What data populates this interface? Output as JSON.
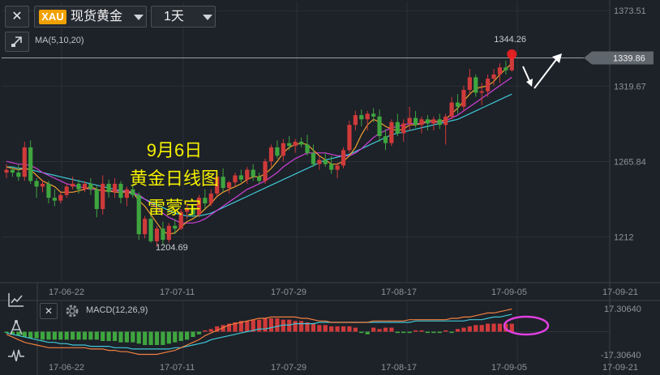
{
  "toolbar": {
    "close_glyph": "✕",
    "symbol_badge": "XAU",
    "symbol_name": "现货黄金",
    "period": "1天",
    "indicator_label": "MA(5,10,20)"
  },
  "sidebar": {
    "icons": [
      "line-chart-icon",
      "drawing-tool-icon",
      "indicator-wave-icon"
    ]
  },
  "macd_panel": {
    "close_glyph": "✕",
    "label": "MACD(12,26,9)",
    "ytick_top": "17.30640",
    "ytick_bottom": "-17.30640"
  },
  "annotation": {
    "line1": "9月6日",
    "line2": "黄金日线图",
    "line3": "雷蒙宇"
  },
  "colors": {
    "up": "#d03a3a",
    "down": "#3fa53f",
    "ma5": "#f0a030",
    "ma10": "#d040d8",
    "ma20": "#40c8d8",
    "macd_dif": "#f08040",
    "macd_dea": "#40c8d8",
    "highlight_circle": "#e040e0",
    "background": "#1d2128",
    "grid": "#2b3038"
  },
  "chart_data": {
    "type": "candlestick",
    "price_axis": {
      "ticks": [
        "1373.51",
        "1319.67",
        "1265.84",
        "1212"
      ],
      "ylim": [
        1180,
        1380
      ],
      "current_price_label": "1339.86",
      "current_price": 1339.86
    },
    "x_ticks": [
      "17-06-22",
      "17-07-11",
      "17-07-29",
      "17-08-17",
      "17-09-05",
      "17-09-21"
    ],
    "annotations": {
      "high_label": "1344.26",
      "high_value": 1344.26,
      "low_label": "1204.69",
      "low_value": 1204.69
    },
    "candles_ohlc": [
      [
        1258,
        1264,
        1254,
        1260
      ],
      [
        1260,
        1262,
        1255,
        1258
      ],
      [
        1258,
        1264,
        1252,
        1255
      ],
      [
        1255,
        1280,
        1252,
        1276
      ],
      [
        1276,
        1281,
        1250,
        1252
      ],
      [
        1252,
        1254,
        1240,
        1248
      ],
      [
        1248,
        1253,
        1244,
        1250
      ],
      [
        1250,
        1252,
        1236,
        1240
      ],
      [
        1240,
        1246,
        1234,
        1238
      ],
      [
        1238,
        1244,
        1236,
        1242
      ],
      [
        1242,
        1250,
        1240,
        1248
      ],
      [
        1248,
        1255,
        1246,
        1250
      ],
      [
        1250,
        1253,
        1243,
        1246
      ],
      [
        1246,
        1252,
        1244,
        1250
      ],
      [
        1250,
        1254,
        1242,
        1246
      ],
      [
        1246,
        1249,
        1226,
        1232
      ],
      [
        1232,
        1256,
        1228,
        1250
      ],
      [
        1250,
        1253,
        1240,
        1244
      ],
      [
        1244,
        1254,
        1240,
        1250
      ],
      [
        1250,
        1252,
        1236,
        1240
      ],
      [
        1240,
        1248,
        1234,
        1246
      ],
      [
        1246,
        1250,
        1240,
        1242
      ],
      [
        1242,
        1244,
        1210,
        1214
      ],
      [
        1214,
        1227,
        1211,
        1225
      ],
      [
        1225,
        1228,
        1208,
        1209
      ],
      [
        1209,
        1220,
        1205,
        1218
      ],
      [
        1218,
        1223,
        1206,
        1210
      ],
      [
        1210,
        1222,
        1208,
        1220
      ],
      [
        1220,
        1225,
        1214,
        1218
      ],
      [
        1218,
        1232,
        1217,
        1230
      ],
      [
        1230,
        1236,
        1225,
        1232
      ],
      [
        1232,
        1235,
        1226,
        1228
      ],
      [
        1228,
        1242,
        1226,
        1240
      ],
      [
        1240,
        1246,
        1232,
        1236
      ],
      [
        1236,
        1246,
        1234,
        1243
      ],
      [
        1243,
        1258,
        1241,
        1255
      ],
      [
        1255,
        1261,
        1244,
        1247
      ],
      [
        1247,
        1252,
        1243,
        1251
      ],
      [
        1251,
        1258,
        1248,
        1256
      ],
      [
        1256,
        1260,
        1251,
        1253
      ],
      [
        1253,
        1262,
        1250,
        1260
      ],
      [
        1260,
        1264,
        1252,
        1255
      ],
      [
        1255,
        1258,
        1250,
        1252
      ],
      [
        1252,
        1268,
        1250,
        1266
      ],
      [
        1266,
        1278,
        1262,
        1276
      ],
      [
        1276,
        1281,
        1268,
        1270
      ],
      [
        1270,
        1282,
        1266,
        1279
      ],
      [
        1279,
        1284,
        1274,
        1277
      ],
      [
        1277,
        1282,
        1272,
        1280
      ],
      [
        1280,
        1283,
        1276,
        1278
      ],
      [
        1278,
        1285,
        1270,
        1272
      ],
      [
        1272,
        1278,
        1262,
        1264
      ],
      [
        1264,
        1270,
        1260,
        1267
      ],
      [
        1267,
        1272,
        1262,
        1264
      ],
      [
        1264,
        1270,
        1257,
        1260
      ],
      [
        1260,
        1265,
        1254,
        1263
      ],
      [
        1263,
        1276,
        1261,
        1274
      ],
      [
        1274,
        1295,
        1272,
        1292
      ],
      [
        1292,
        1302,
        1288,
        1299
      ],
      [
        1299,
        1303,
        1291,
        1296
      ],
      [
        1296,
        1302,
        1288,
        1300
      ],
      [
        1300,
        1304,
        1294,
        1298
      ],
      [
        1298,
        1303,
        1280,
        1284
      ],
      [
        1284,
        1289,
        1274,
        1279
      ],
      [
        1279,
        1296,
        1277,
        1294
      ],
      [
        1294,
        1300,
        1284,
        1286
      ],
      [
        1286,
        1296,
        1280,
        1293
      ],
      [
        1293,
        1305,
        1288,
        1297
      ],
      [
        1297,
        1302,
        1290,
        1292
      ],
      [
        1292,
        1298,
        1286,
        1296
      ],
      [
        1296,
        1299,
        1288,
        1293
      ],
      [
        1293,
        1298,
        1288,
        1296
      ],
      [
        1296,
        1300,
        1289,
        1292
      ],
      [
        1292,
        1300,
        1278,
        1298
      ],
      [
        1298,
        1312,
        1296,
        1308
      ],
      [
        1308,
        1314,
        1300,
        1305
      ],
      [
        1305,
        1320,
        1302,
        1317
      ],
      [
        1317,
        1332,
        1314,
        1326
      ],
      [
        1326,
        1328,
        1312,
        1315
      ],
      [
        1315,
        1322,
        1306,
        1316
      ],
      [
        1316,
        1328,
        1312,
        1325
      ],
      [
        1325,
        1332,
        1320,
        1328
      ],
      [
        1328,
        1336,
        1322,
        1333
      ],
      [
        1333,
        1338,
        1328,
        1331
      ],
      [
        1331,
        1344,
        1330,
        1340
      ]
    ],
    "ma": {
      "ma5": [
        1262,
        1261,
        1260,
        1261,
        1260,
        1256,
        1252,
        1250,
        1248,
        1244,
        1244,
        1244,
        1245,
        1246,
        1248,
        1246,
        1245,
        1245,
        1244,
        1244,
        1244,
        1244,
        1238,
        1234,
        1228,
        1222,
        1216,
        1214,
        1215,
        1219,
        1223,
        1225,
        1228,
        1232,
        1236,
        1241,
        1244,
        1246,
        1248,
        1250,
        1253,
        1255,
        1255,
        1257,
        1261,
        1266,
        1272,
        1276,
        1278,
        1279,
        1278,
        1274,
        1270,
        1267,
        1264,
        1264,
        1266,
        1270,
        1276,
        1285,
        1292,
        1296,
        1294,
        1291,
        1289,
        1288,
        1289,
        1292,
        1292,
        1293,
        1295,
        1295,
        1294,
        1296,
        1300,
        1304,
        1309,
        1314,
        1318,
        1319,
        1320,
        1323,
        1328,
        1332,
        1336
      ],
      "ma10": [
        1266,
        1265,
        1264,
        1264,
        1263,
        1261,
        1258,
        1256,
        1254,
        1252,
        1250,
        1249,
        1248,
        1247,
        1246,
        1246,
        1245,
        1245,
        1245,
        1245,
        1245,
        1244,
        1242,
        1239,
        1236,
        1233,
        1229,
        1226,
        1224,
        1222,
        1222,
        1222,
        1223,
        1225,
        1228,
        1231,
        1234,
        1237,
        1240,
        1243,
        1246,
        1248,
        1250,
        1252,
        1255,
        1258,
        1262,
        1265,
        1268,
        1270,
        1272,
        1272,
        1272,
        1272,
        1271,
        1270,
        1270,
        1270,
        1272,
        1275,
        1279,
        1283,
        1286,
        1288,
        1290,
        1291,
        1292,
        1293,
        1293,
        1293,
        1294,
        1294,
        1294,
        1295,
        1297,
        1299,
        1302,
        1305,
        1308,
        1311,
        1314,
        1317,
        1320,
        1323,
        1326
      ],
      "ma20": [
        1262,
        1262,
        1261,
        1261,
        1260,
        1259,
        1258,
        1257,
        1256,
        1255,
        1254,
        1253,
        1252,
        1251,
        1250,
        1249,
        1248,
        1247,
        1246,
        1245,
        1244,
        1243,
        1241,
        1239,
        1237,
        1235,
        1233,
        1231,
        1229,
        1228,
        1227,
        1227,
        1227,
        1228,
        1229,
        1231,
        1233,
        1235,
        1237,
        1239,
        1241,
        1243,
        1245,
        1247,
        1249,
        1251,
        1253,
        1255,
        1257,
        1259,
        1261,
        1263,
        1265,
        1267,
        1268,
        1269,
        1270,
        1271,
        1273,
        1275,
        1277,
        1279,
        1281,
        1283,
        1285,
        1286,
        1287,
        1288,
        1289,
        1290,
        1291,
        1292,
        1293,
        1294,
        1295,
        1296,
        1298,
        1300,
        1302,
        1304,
        1306,
        1308,
        1310,
        1312,
        1314
      ]
    },
    "macd": {
      "ylim": [
        -17.3064,
        17.3064
      ],
      "histogram": [
        -1,
        -2,
        -3,
        -4,
        -5,
        -5,
        -6,
        -6,
        -6,
        -6,
        -6,
        -6,
        -6,
        -6,
        -6,
        -6,
        -7,
        -7,
        -7,
        -8,
        -8,
        -8,
        -9,
        -10,
        -10,
        -10,
        -10,
        -9,
        -8,
        -7,
        -6,
        -4,
        -2,
        1,
        2,
        4,
        5,
        6,
        7,
        8,
        8,
        9,
        9,
        10,
        10,
        10,
        9,
        9,
        8,
        8,
        7,
        6,
        5,
        5,
        4,
        4,
        4,
        4,
        3,
        -1,
        -2,
        3,
        2,
        3,
        3,
        -1,
        -1,
        -1,
        1,
        1,
        -1,
        -1,
        -1,
        1,
        -1,
        2,
        3,
        4,
        5,
        5,
        6,
        6,
        6,
        6,
        6
      ],
      "dif": [
        -2,
        -4,
        -6,
        -8,
        -9,
        -10,
        -11,
        -12,
        -12,
        -12,
        -12,
        -12,
        -12,
        -12,
        -13,
        -13,
        -13,
        -14,
        -14,
        -15,
        -15,
        -16,
        -17,
        -17,
        -17,
        -17,
        -16,
        -15,
        -14,
        -12,
        -10,
        -8,
        -6,
        -3,
        -1,
        1,
        3,
        5,
        6,
        7,
        8,
        9,
        10,
        10,
        11,
        11,
        11,
        11,
        11,
        10,
        10,
        9,
        8,
        8,
        7,
        7,
        7,
        7,
        7,
        7,
        7,
        8,
        8,
        8,
        8,
        8,
        8,
        9,
        9,
        9,
        9,
        9,
        9,
        9,
        10,
        10,
        11,
        11,
        12,
        13,
        14,
        14,
        15,
        16,
        17
      ],
      "dea": [
        -1,
        -2,
        -3,
        -4,
        -5,
        -6,
        -7,
        -8,
        -8,
        -9,
        -9,
        -10,
        -10,
        -10,
        -11,
        -11,
        -11,
        -11,
        -12,
        -12,
        -12,
        -13,
        -13,
        -13,
        -13,
        -13,
        -13,
        -13,
        -12,
        -12,
        -11,
        -10,
        -9,
        -8,
        -6,
        -5,
        -4,
        -3,
        -2,
        -1,
        0,
        1,
        2,
        2,
        3,
        4,
        5,
        5,
        6,
        6,
        6,
        6,
        7,
        7,
        7,
        7,
        7,
        7,
        7,
        7,
        7,
        7,
        7,
        7,
        7,
        7,
        7,
        7,
        8,
        8,
        8,
        8,
        8,
        8,
        8,
        8,
        8,
        9,
        9,
        9,
        10,
        11,
        11,
        12,
        13
      ]
    }
  }
}
